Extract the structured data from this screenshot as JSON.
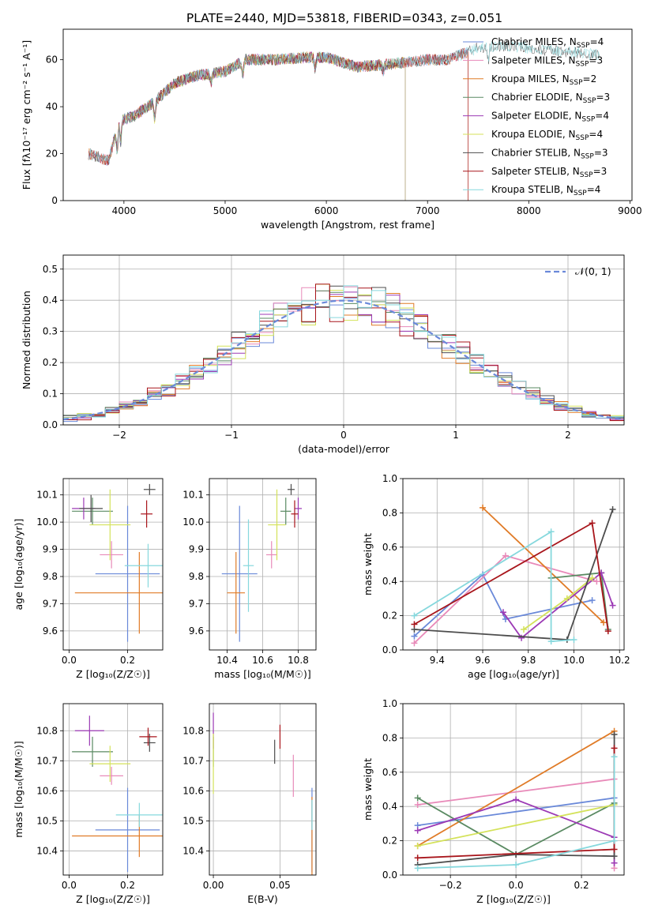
{
  "figure_title": "PLATE=2440, MJD=53818, FIBERID=0343, z=0.051",
  "colors": [
    "#6a89d9",
    "#e88ab9",
    "#e07b27",
    "#5a8a62",
    "#9c3ab5",
    "#d4e25a",
    "#4d4d4d",
    "#a8151b",
    "#86d8dd"
  ],
  "chart_data": [
    {
      "id": "spectrum",
      "type": "line",
      "title": "PLATE=2440, MJD=53818, FIBERID=0343, z=0.051",
      "xlabel": "wavelength [Angstrom, rest frame]",
      "ylabel": "Flux [fλ10⁻¹⁷ erg cm⁻² s⁻¹ A⁻¹]",
      "xlim": [
        3400,
        9020
      ],
      "ylim": [
        0,
        73
      ],
      "xticks": [
        "4000",
        "5000",
        "6000",
        "7000",
        "8000",
        "9000"
      ],
      "yticks": [
        "0",
        "20",
        "40",
        "60"
      ],
      "legend_position": "upper-right",
      "series": [
        {
          "name": "Chabrier MILES, N",
          "sub": "SSP",
          "suffix": "=4",
          "color": "#6a89d9",
          "x_range": [
            3650,
            7400
          ]
        },
        {
          "name": "Salpeter MILES, N",
          "sub": "SSP",
          "suffix": "=3",
          "color": "#e88ab9",
          "x_range": [
            3650,
            7400
          ]
        },
        {
          "name": "Kroupa MILES, N",
          "sub": "SSP",
          "suffix": "=2",
          "color": "#e07b27",
          "x_range": [
            3650,
            7400
          ]
        },
        {
          "name": "Chabrier ELODIE, N",
          "sub": "SSP",
          "suffix": "=3",
          "color": "#5a8a62",
          "x_range": [
            3900,
            6780
          ]
        },
        {
          "name": "Salpeter ELODIE, N",
          "sub": "SSP",
          "suffix": "=4",
          "color": "#9c3ab5",
          "x_range": [
            3900,
            6780
          ]
        },
        {
          "name": "Kroupa ELODIE, N",
          "sub": "SSP",
          "suffix": "=4",
          "color": "#d4e25a",
          "x_range": [
            3900,
            6780
          ]
        },
        {
          "name": "Chabrier STELIB, N",
          "sub": "SSP",
          "suffix": "=3",
          "color": "#4d4d4d",
          "x_range": [
            3650,
            8700
          ]
        },
        {
          "name": "Salpeter STELIB, N",
          "sub": "SSP",
          "suffix": "=3",
          "color": "#a8151b",
          "x_range": [
            3650,
            7400
          ]
        },
        {
          "name": "Kroupa STELIB, N",
          "sub": "SSP",
          "suffix": "=4",
          "color": "#86d8dd",
          "x_range": [
            3650,
            8700
          ]
        }
      ]
    },
    {
      "id": "residuals",
      "type": "line",
      "xlabel": "(data-model)/error",
      "ylabel": "Normed distribution",
      "xlim": [
        -2.5,
        2.5
      ],
      "ylim": [
        0,
        0.545
      ],
      "xticks": [
        "−2",
        "−1",
        "0",
        "1",
        "2"
      ],
      "yticks": [
        "0.0",
        "0.1",
        "0.2",
        "0.3",
        "0.4",
        "0.5"
      ],
      "grid": true,
      "legend_position": "upper-right",
      "reference_label": "𝒩(0, 1)",
      "bin_width": 0.125
    },
    {
      "id": "age_vs_Z",
      "type": "scatter",
      "xlabel": "Z [log₁₀(Z/Z☉)]",
      "ylabel": "age  [log₁₀(age/yr)]",
      "xlim": [
        -0.02,
        0.32
      ],
      "ylim": [
        9.53,
        10.16
      ],
      "xticks": [
        "0.0",
        "0.2"
      ],
      "yticks": [
        "9.6",
        "9.7",
        "9.8",
        "9.9",
        "10.0",
        "10.1"
      ],
      "grid": true,
      "points": [
        {
          "x": 0.2,
          "y": 9.81,
          "xerr": 0.11,
          "yerr": 0.25,
          "color": "#6a89d9"
        },
        {
          "x": 0.145,
          "y": 9.88,
          "xerr": 0.04,
          "yerr": 0.05,
          "color": "#e88ab9"
        },
        {
          "x": 0.24,
          "y": 9.74,
          "xerr": 0.22,
          "yerr": 0.15,
          "color": "#e07b27"
        },
        {
          "x": 0.08,
          "y": 10.04,
          "xerr": 0.07,
          "yerr": 0.05,
          "color": "#5a8a62"
        },
        {
          "x": 0.05,
          "y": 10.05,
          "xerr": 0.04,
          "yerr": 0.04,
          "color": "#9c3ab5"
        },
        {
          "x": 0.14,
          "y": 9.99,
          "xerr": 0.07,
          "yerr": 0.13,
          "color": "#d4e25a"
        },
        {
          "x": 0.075,
          "y": 10.05,
          "xerr": 0.04,
          "yerr": 0.05,
          "color": "#4d4d4d"
        },
        {
          "x": 0.265,
          "y": 10.03,
          "xerr": 0.02,
          "yerr": 0.05,
          "color": "#a8151b"
        },
        {
          "x": 0.27,
          "y": 9.84,
          "xerr": 0.08,
          "yerr": 0.08,
          "color": "#86d8dd"
        },
        {
          "x": 0.275,
          "y": 10.12,
          "xerr": 0.02,
          "yerr": 0.02,
          "color": "#4d4d4d"
        }
      ]
    },
    {
      "id": "age_vs_mass",
      "type": "scatter",
      "xlabel": "mass [log₁₀(M/M☉)]",
      "ylabel": "",
      "xlim": [
        10.3,
        10.9
      ],
      "ylim": [
        9.53,
        10.16
      ],
      "xticks": [
        "10.4",
        "10.6",
        "10.8"
      ],
      "yticks": [
        "9.6",
        "9.7",
        "9.8",
        "9.9",
        "10.0",
        "10.1"
      ],
      "grid": true,
      "points": [
        {
          "x": 10.47,
          "y": 9.81,
          "xerr": 0.1,
          "yerr": 0.25,
          "color": "#6a89d9"
        },
        {
          "x": 10.65,
          "y": 9.88,
          "xerr": 0.03,
          "yerr": 0.05,
          "color": "#e88ab9"
        },
        {
          "x": 10.45,
          "y": 9.74,
          "xerr": 0.05,
          "yerr": 0.15,
          "color": "#e07b27"
        },
        {
          "x": 10.73,
          "y": 10.04,
          "xerr": 0.03,
          "yerr": 0.05,
          "color": "#5a8a62"
        },
        {
          "x": 10.8,
          "y": 10.05,
          "xerr": 0.02,
          "yerr": 0.04,
          "color": "#9c3ab5"
        },
        {
          "x": 10.68,
          "y": 9.99,
          "xerr": 0.05,
          "yerr": 0.13,
          "color": "#d4e25a"
        },
        {
          "x": 10.76,
          "y": 10.12,
          "xerr": 0.02,
          "yerr": 0.02,
          "color": "#4d4d4d"
        },
        {
          "x": 10.78,
          "y": 10.03,
          "xerr": 0.02,
          "yerr": 0.05,
          "color": "#a8151b"
        },
        {
          "x": 10.52,
          "y": 9.84,
          "xerr": 0.03,
          "yerr": 0.17,
          "color": "#86d8dd"
        }
      ]
    },
    {
      "id": "weight_vs_age",
      "type": "line",
      "xlabel": "age  [log₁₀(age/yr)]",
      "ylabel": "mass weight",
      "xlim": [
        9.25,
        10.22
      ],
      "ylim": [
        0,
        1
      ],
      "xticks": [
        "9.4",
        "9.6",
        "9.8",
        "10.0",
        "10.2"
      ],
      "yticks": [
        "0.0",
        "0.2",
        "0.4",
        "0.6",
        "0.8",
        "1.0"
      ],
      "grid": true,
      "series": [
        {
          "color": "#6a89d9",
          "points": [
            [
              9.3,
              0.08
            ],
            [
              9.6,
              0.44
            ],
            [
              9.7,
              0.18
            ],
            [
              10.08,
              0.29
            ]
          ]
        },
        {
          "color": "#e88ab9",
          "points": [
            [
              9.3,
              0.04
            ],
            [
              9.7,
              0.55
            ],
            [
              10.1,
              0.4
            ]
          ]
        },
        {
          "color": "#e07b27",
          "points": [
            [
              9.6,
              0.83
            ],
            [
              10.13,
              0.16
            ]
          ]
        },
        {
          "color": "#5a8a62",
          "points": [
            [
              9.9,
              0.42
            ],
            [
              10.12,
              0.45
            ],
            [
              10.15,
              0.12
            ]
          ]
        },
        {
          "color": "#9c3ab5",
          "points": [
            [
              9.69,
              0.22
            ],
            [
              9.77,
              0.07
            ],
            [
              10.12,
              0.45
            ],
            [
              10.17,
              0.26
            ]
          ]
        },
        {
          "color": "#d4e25a",
          "points": [
            [
              9.78,
              0.12
            ],
            [
              9.97,
              0.3
            ],
            [
              10.08,
              0.42
            ]
          ]
        },
        {
          "color": "#4d4d4d",
          "points": [
            [
              9.3,
              0.12
            ],
            [
              9.97,
              0.06
            ],
            [
              10.17,
              0.82
            ]
          ]
        },
        {
          "color": "#a8151b",
          "points": [
            [
              9.3,
              0.15
            ],
            [
              10.08,
              0.74
            ],
            [
              10.15,
              0.11
            ]
          ]
        },
        {
          "color": "#86d8dd",
          "points": [
            [
              9.3,
              0.2
            ],
            [
              9.9,
              0.69
            ],
            [
              9.9,
              0.05
            ],
            [
              10.0,
              0.06
            ]
          ]
        }
      ]
    },
    {
      "id": "mass_vs_Z",
      "type": "scatter",
      "xlabel": "Z [log₁₀(Z/Z☉)]",
      "ylabel": "mass [log₁₀(M/M☉)]",
      "xlim": [
        -0.02,
        0.32
      ],
      "ylim": [
        10.32,
        10.89
      ],
      "xticks": [
        "0.0",
        "0.2"
      ],
      "yticks": [
        "10.4",
        "10.5",
        "10.6",
        "10.7",
        "10.8"
      ],
      "grid": true,
      "points": [
        {
          "x": 0.2,
          "y": 10.47,
          "xerr": 0.11,
          "yerr": 0.14,
          "color": "#6a89d9"
        },
        {
          "x": 0.145,
          "y": 10.65,
          "xerr": 0.04,
          "yerr": 0.03,
          "color": "#e88ab9"
        },
        {
          "x": 0.24,
          "y": 10.45,
          "xerr": 0.23,
          "yerr": 0.07,
          "color": "#e07b27"
        },
        {
          "x": 0.08,
          "y": 10.73,
          "xerr": 0.07,
          "yerr": 0.05,
          "color": "#5a8a62"
        },
        {
          "x": 0.07,
          "y": 10.8,
          "xerr": 0.05,
          "yerr": 0.05,
          "color": "#9c3ab5"
        },
        {
          "x": 0.14,
          "y": 10.69,
          "xerr": 0.07,
          "yerr": 0.06,
          "color": "#d4e25a"
        },
        {
          "x": 0.275,
          "y": 10.76,
          "xerr": 0.02,
          "yerr": 0.03,
          "color": "#4d4d4d"
        },
        {
          "x": 0.27,
          "y": 10.78,
          "xerr": 0.03,
          "yerr": 0.03,
          "color": "#a8151b"
        },
        {
          "x": 0.24,
          "y": 10.52,
          "xerr": 0.08,
          "yerr": 0.04,
          "color": "#86d8dd"
        }
      ]
    },
    {
      "id": "mass_vs_ebv",
      "type": "scatter",
      "xlabel": "E(B-V)",
      "ylabel": "",
      "xlim": [
        -0.003,
        0.077
      ],
      "ylim": [
        10.32,
        10.89
      ],
      "xticks": [
        "0.00",
        "0.05"
      ],
      "yticks": [
        "10.4",
        "10.5",
        "10.6",
        "10.7",
        "10.8"
      ],
      "grid": true,
      "points": [
        {
          "x": 0.074,
          "y": 10.47,
          "xerr": 0,
          "yerr": 0.14,
          "color": "#6a89d9"
        },
        {
          "x": 0.06,
          "y": 10.65,
          "xerr": 0,
          "yerr": 0.07,
          "color": "#e88ab9"
        },
        {
          "x": 0.074,
          "y": 10.45,
          "xerr": 0,
          "yerr": 0.13,
          "color": "#e07b27"
        },
        {
          "x": 0.0,
          "y": 10.73,
          "xerr": 0,
          "yerr": 0.05,
          "color": "#5a8a62"
        },
        {
          "x": 0.0,
          "y": 10.8,
          "xerr": 0,
          "yerr": 0.06,
          "color": "#9c3ab5"
        },
        {
          "x": 0.0,
          "y": 10.69,
          "xerr": 0,
          "yerr": 0.1,
          "color": "#d4e25a"
        },
        {
          "x": 0.046,
          "y": 10.73,
          "xerr": 0,
          "yerr": 0.04,
          "color": "#4d4d4d"
        },
        {
          "x": 0.05,
          "y": 10.78,
          "xerr": 0,
          "yerr": 0.04,
          "color": "#a8151b"
        },
        {
          "x": 0.074,
          "y": 10.52,
          "xerr": 0,
          "yerr": 0.05,
          "color": "#86d8dd"
        }
      ]
    },
    {
      "id": "weight_vs_Z",
      "type": "line",
      "xlabel": "Z [log₁₀(Z/Z☉)]",
      "ylabel": "mass weight",
      "xlim": [
        -0.345,
        0.33
      ],
      "ylim": [
        0,
        1
      ],
      "xticks": [
        "−0.2",
        "0.0",
        "0.2"
      ],
      "yticks": [
        "0.0",
        "0.2",
        "0.4",
        "0.6",
        "0.8",
        "1.0"
      ],
      "grid": true,
      "series": [
        {
          "color": "#6a89d9",
          "points": [
            [
              -0.3,
              0.29
            ],
            [
              0.3,
              0.45
            ]
          ]
        },
        {
          "color": "#e88ab9",
          "points": [
            [
              -0.3,
              0.41
            ],
            [
              0.3,
              0.56
            ],
            [
              0.3,
              0.04
            ]
          ]
        },
        {
          "color": "#e07b27",
          "points": [
            [
              -0.3,
              0.17
            ],
            [
              0.3,
              0.84
            ]
          ]
        },
        {
          "color": "#5a8a62",
          "points": [
            [
              -0.3,
              0.45
            ],
            [
              0.0,
              0.12
            ],
            [
              0.3,
              0.42
            ]
          ]
        },
        {
          "color": "#9c3ab5",
          "points": [
            [
              -0.3,
              0.26
            ],
            [
              0.0,
              0.44
            ],
            [
              0.3,
              0.22
            ],
            [
              0.3,
              0.07
            ]
          ]
        },
        {
          "color": "#d4e25a",
          "points": [
            [
              -0.3,
              0.17
            ],
            [
              0.3,
              0.41
            ]
          ]
        },
        {
          "color": "#4d4d4d",
          "points": [
            [
              -0.3,
              0.06
            ],
            [
              0.0,
              0.12
            ],
            [
              0.3,
              0.11
            ],
            [
              0.3,
              0.82
            ]
          ]
        },
        {
          "color": "#a8151b",
          "points": [
            [
              -0.3,
              0.1
            ],
            [
              0.3,
              0.15
            ],
            [
              0.3,
              0.74
            ]
          ]
        },
        {
          "color": "#86d8dd",
          "points": [
            [
              -0.3,
              0.04
            ],
            [
              0.0,
              0.06
            ],
            [
              0.3,
              0.2
            ],
            [
              0.3,
              0.69
            ]
          ]
        }
      ]
    }
  ]
}
